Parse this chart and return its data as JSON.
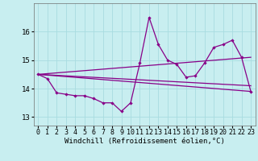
{
  "xlabel": "Windchill (Refroidissement éolien,°C)",
  "background_color": "#c8eef0",
  "grid_color": "#a8dce0",
  "plot_color": "#880088",
  "xlim": [
    -0.5,
    23.5
  ],
  "ylim": [
    12.7,
    17.0
  ],
  "yticks": [
    13,
    14,
    15,
    16
  ],
  "xticks": [
    0,
    1,
    2,
    3,
    4,
    5,
    6,
    7,
    8,
    9,
    10,
    11,
    12,
    13,
    14,
    15,
    16,
    17,
    18,
    19,
    20,
    21,
    22,
    23
  ],
  "series1_x": [
    0,
    1,
    2,
    3,
    4,
    5,
    6,
    7,
    8,
    9,
    10,
    11,
    12,
    13,
    14,
    15,
    16,
    17,
    18,
    19,
    20,
    21,
    22,
    23
  ],
  "series1_y": [
    14.5,
    14.35,
    13.85,
    13.8,
    13.75,
    13.75,
    13.65,
    13.5,
    13.5,
    13.2,
    13.5,
    14.9,
    16.5,
    15.55,
    15.0,
    14.85,
    14.4,
    14.45,
    14.9,
    15.45,
    15.55,
    15.7,
    15.1,
    13.9
  ],
  "series2_x": [
    0,
    23
  ],
  "series2_y": [
    14.5,
    15.1
  ],
  "series3_x": [
    0,
    23
  ],
  "series3_y": [
    14.5,
    14.1
  ],
  "series4_x": [
    0,
    23
  ],
  "series4_y": [
    14.5,
    13.9
  ]
}
